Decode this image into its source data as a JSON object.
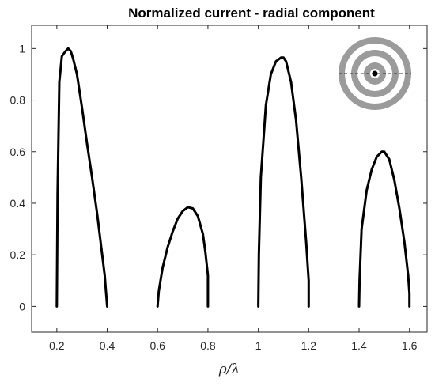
{
  "chart_data": {
    "type": "line",
    "title": "Normalized current - radial component",
    "xlabel": "ρ/λ",
    "ylabel": "",
    "xlim": [
      0.1,
      1.67
    ],
    "ylim": [
      -0.1,
      1.09
    ],
    "xticks": [
      0.2,
      0.4,
      0.6,
      0.8,
      1,
      1.2,
      1.4,
      1.6
    ],
    "xtick_labels": [
      "0.2",
      "0.4",
      "0.6",
      "0.8",
      "1",
      "1.2",
      "1.4",
      "1.6"
    ],
    "yticks": [
      0,
      0.2,
      0.4,
      0.6,
      0.8,
      1
    ],
    "ytick_labels": [
      "0",
      "0.2",
      "0.4",
      "0.6",
      "0.8",
      "1"
    ],
    "grid": false,
    "legend": "none",
    "line_color": "#000000",
    "series": [
      {
        "x": [
          0.2,
          0.203,
          0.21,
          0.22,
          0.235,
          0.245,
          0.255,
          0.265,
          0.28,
          0.3,
          0.32,
          0.34,
          0.36,
          0.38,
          0.39,
          0.395,
          0.4
        ],
        "y": [
          0,
          0.44,
          0.87,
          0.97,
          0.99,
          1.0,
          0.99,
          0.96,
          0.9,
          0.77,
          0.63,
          0.5,
          0.36,
          0.2,
          0.12,
          0.06,
          0
        ]
      },
      {
        "x": [
          0.6,
          0.605,
          0.62,
          0.64,
          0.66,
          0.68,
          0.7,
          0.72,
          0.74,
          0.76,
          0.78,
          0.79,
          0.8,
          0.8
        ],
        "y": [
          0,
          0.06,
          0.15,
          0.23,
          0.29,
          0.34,
          0.37,
          0.385,
          0.38,
          0.35,
          0.28,
          0.21,
          0.12,
          0
        ]
      },
      {
        "x": [
          1.0,
          1.002,
          1.01,
          1.03,
          1.05,
          1.07,
          1.09,
          1.1,
          1.11,
          1.13,
          1.15,
          1.17,
          1.19,
          1.2,
          1.2
        ],
        "y": [
          0,
          0.2,
          0.5,
          0.78,
          0.9,
          0.95,
          0.965,
          0.965,
          0.95,
          0.87,
          0.72,
          0.5,
          0.25,
          0.1,
          0
        ]
      },
      {
        "x": [
          1.4,
          1.402,
          1.41,
          1.43,
          1.45,
          1.47,
          1.49,
          1.5,
          1.52,
          1.54,
          1.56,
          1.58,
          1.595,
          1.6,
          1.6
        ],
        "y": [
          0,
          0.1,
          0.3,
          0.45,
          0.53,
          0.58,
          0.6,
          0.6,
          0.57,
          0.49,
          0.38,
          0.25,
          0.12,
          0.05,
          0
        ]
      }
    ],
    "inset_icon": "concentric-rings-icon",
    "inset_colors": {
      "ring_gray": "#9b9b9b",
      "gap": "#ffffff",
      "center_dot": "#000000",
      "axis_line": "#303030"
    }
  }
}
